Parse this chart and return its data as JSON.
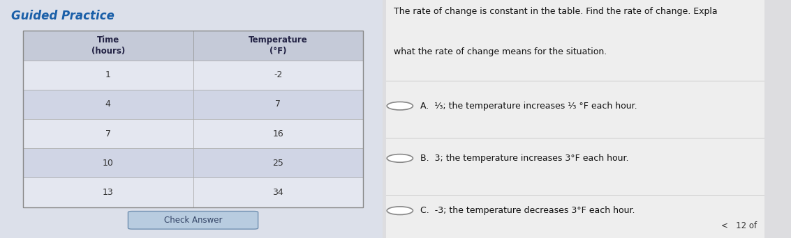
{
  "title_left": "Guided Practice",
  "col1_header": "Time\n(hours)",
  "col2_header": "Temperature\n(°F)",
  "rows": [
    [
      "1",
      "-2"
    ],
    [
      "4",
      "7"
    ],
    [
      "7",
      "16"
    ],
    [
      "10",
      "25"
    ],
    [
      "13",
      "34"
    ]
  ],
  "question_line1": "The rate of change is constant in the table. Find the rate of change. Expla",
  "question_line2": "what the rate of change means for the situation.",
  "option_A": "A.  ¹⁄₃; the temperature increases ¹⁄₃ °F each hour.",
  "option_B": "B.  3; the temperature increases 3°F each hour.",
  "option_C": "C.  -3; the temperature decreases 3°F each hour.",
  "check_answer_text": "Check Answer",
  "page_indicator": "<   12 of",
  "bg_color": "#dddde0",
  "panel_left_bg": "#dce0ea",
  "header_bg": "#c5cad8",
  "row_colors": [
    "#e4e7f0",
    "#d0d5e5"
  ],
  "right_bg": "#eeeeee",
  "title_color": "#1a5fa8",
  "check_btn_color": "#b8cce0",
  "radio_color": "#888888"
}
